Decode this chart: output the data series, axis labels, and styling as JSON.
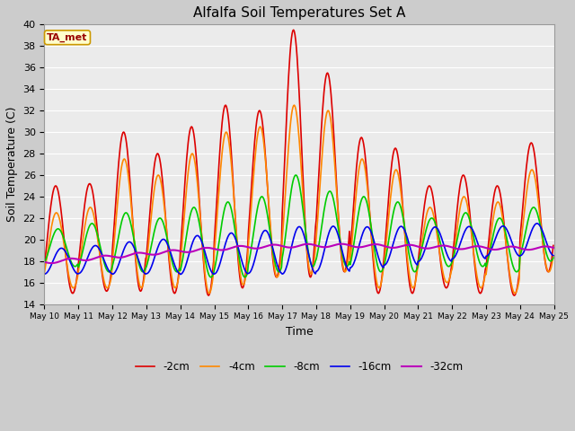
{
  "title": "Alfalfa Soil Temperatures Set A",
  "xlabel": "Time",
  "ylabel": "Soil Temperature (C)",
  "ylim": [
    14,
    40
  ],
  "yticks": [
    14,
    16,
    18,
    20,
    22,
    24,
    26,
    28,
    30,
    32,
    34,
    36,
    38,
    40
  ],
  "xtick_labels": [
    "May 10",
    "May 11",
    "May 12",
    "May 13",
    "May 14",
    "May 15",
    "May 16",
    "May 17",
    "May 18",
    "May 19",
    "May 20",
    "May 21",
    "May 22",
    "May 23",
    "May 24",
    "May 25"
  ],
  "fig_bg_color": "#cccccc",
  "plot_bg_color": "#ebebeb",
  "grid_color": "#ffffff",
  "annotation_text": "TA_met",
  "annotation_bg": "#ffffcc",
  "annotation_border": "#cc9900",
  "annotation_text_color": "#990000",
  "series": {
    "neg2cm": {
      "label": "-2cm",
      "color": "#dd0000",
      "linewidth": 1.2
    },
    "neg4cm": {
      "label": "-4cm",
      "color": "#ff8800",
      "linewidth": 1.2
    },
    "neg8cm": {
      "label": "-8cm",
      "color": "#00cc00",
      "linewidth": 1.2
    },
    "neg16cm": {
      "label": "-16cm",
      "color": "#0000ee",
      "linewidth": 1.2
    },
    "neg32cm": {
      "label": "-32cm",
      "color": "#bb00bb",
      "linewidth": 1.5
    }
  }
}
